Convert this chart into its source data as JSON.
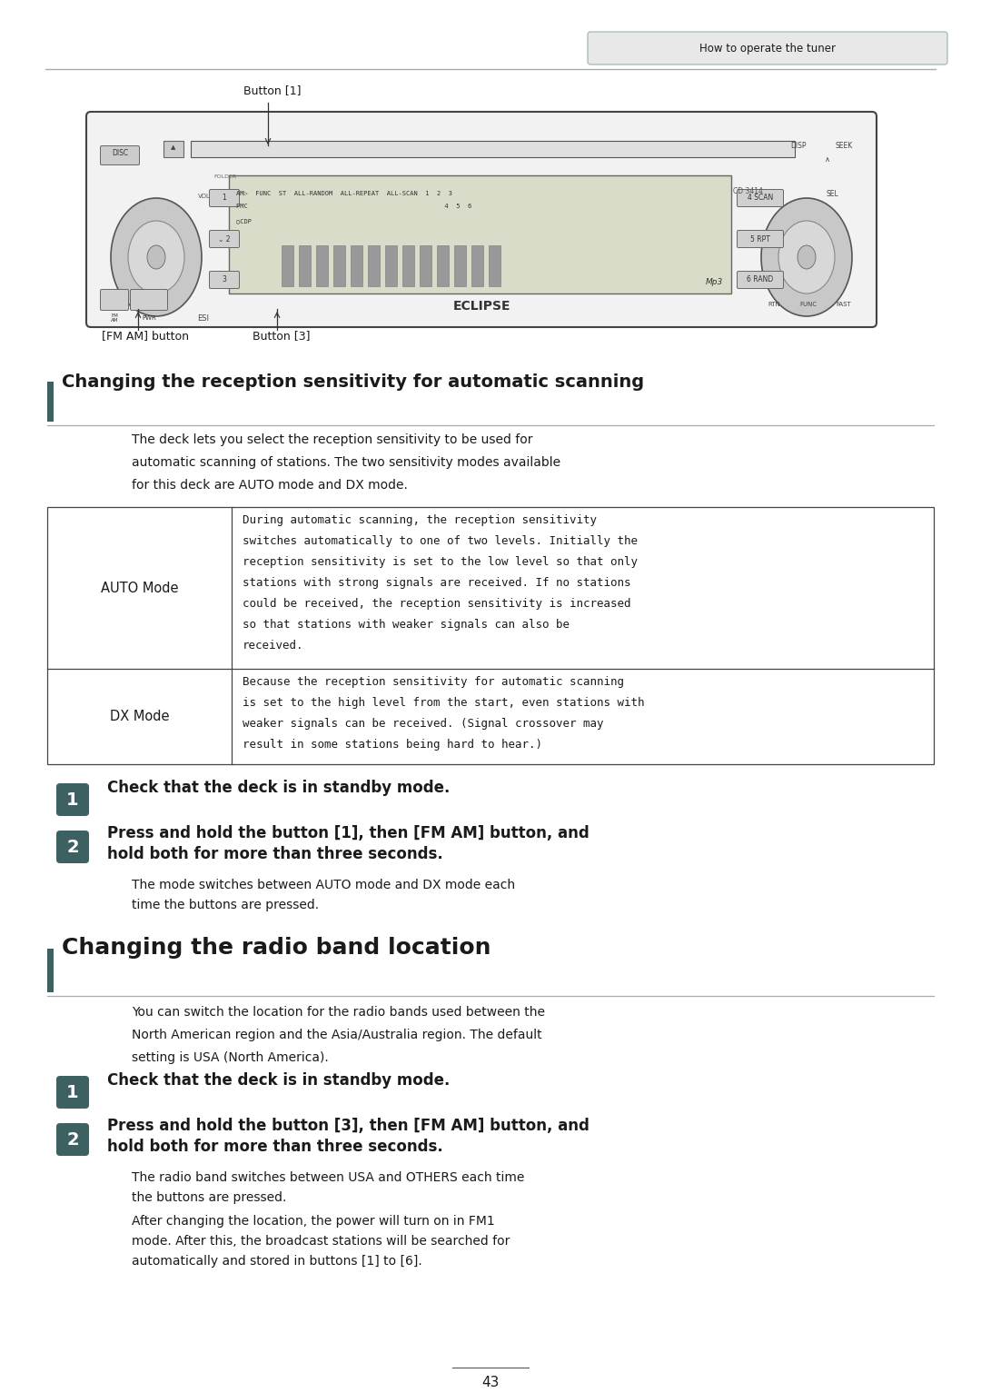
{
  "page_bg": "#ffffff",
  "header_tab_text": "How to operate the tuner",
  "header_tab_bg": "#e8e8e8",
  "header_tab_border": "#9ab0b0",
  "section1_title": "Changing the reception sensitivity for automatic scanning",
  "section1_intro_lines": [
    "The deck lets you select the reception sensitivity to be used for",
    "automatic scanning of stations. The two sensitivity modes available",
    "for this deck are AUTO mode and DX mode."
  ],
  "auto_mode_label": "AUTO Mode",
  "auto_mode_lines": [
    "During automatic scanning, the reception sensitivity",
    "switches automatically to one of two levels. Initially the",
    "reception sensitivity is set to the low level so that only",
    "stations with strong signals are received. If no stations",
    "could be received, the reception sensitivity is increased",
    "so that stations with weaker signals can also be",
    "received."
  ],
  "dx_mode_label": "DX Mode",
  "dx_mode_lines": [
    "Because the reception sensitivity for automatic scanning",
    "is set to the high level from the start, even stations with",
    "weaker signals can be received. (Signal crossover may",
    "result in some stations being hard to hear.)"
  ],
  "s1_step1": "Check that the deck is in standby mode.",
  "s1_step2_line1": "Press and hold the button [1], then [FM AM] button, and",
  "s1_step2_line2": "hold both for more than three seconds.",
  "s1_note_line1": "The mode switches between AUTO mode and DX mode each",
  "s1_note_line2": "time the buttons are pressed.",
  "section2_title": "Changing the radio band location",
  "section2_intro_lines": [
    "You can switch the location for the radio bands used between the",
    "North American region and the Asia/Australia region. The default",
    "setting is USA (North America)."
  ],
  "s2_step1": "Check that the deck is in standby mode.",
  "s2_step2_line1": "Press and hold the button [3], then [FM AM] button, and",
  "s2_step2_line2": "hold both for more than three seconds.",
  "s2_note1_line1": "The radio band switches between USA and OTHERS each time",
  "s2_note1_line2": "the buttons are pressed.",
  "s2_note2_line1": "After changing the location, the power will turn on in FM1",
  "s2_note2_line2": "mode. After this, the broadcast stations will be searched for",
  "s2_note2_line3": "automatically and stored in buttons [1] to [6].",
  "step_badge_bg": "#3d6060",
  "step_badge_fg": "#ffffff",
  "section_bar_color": "#3d6060",
  "text_color": "#1a1a1a",
  "button1_label": "Button [1]",
  "fmam_label": "[FM AM] button",
  "button3_label": "Button [3]",
  "page_number": "43"
}
